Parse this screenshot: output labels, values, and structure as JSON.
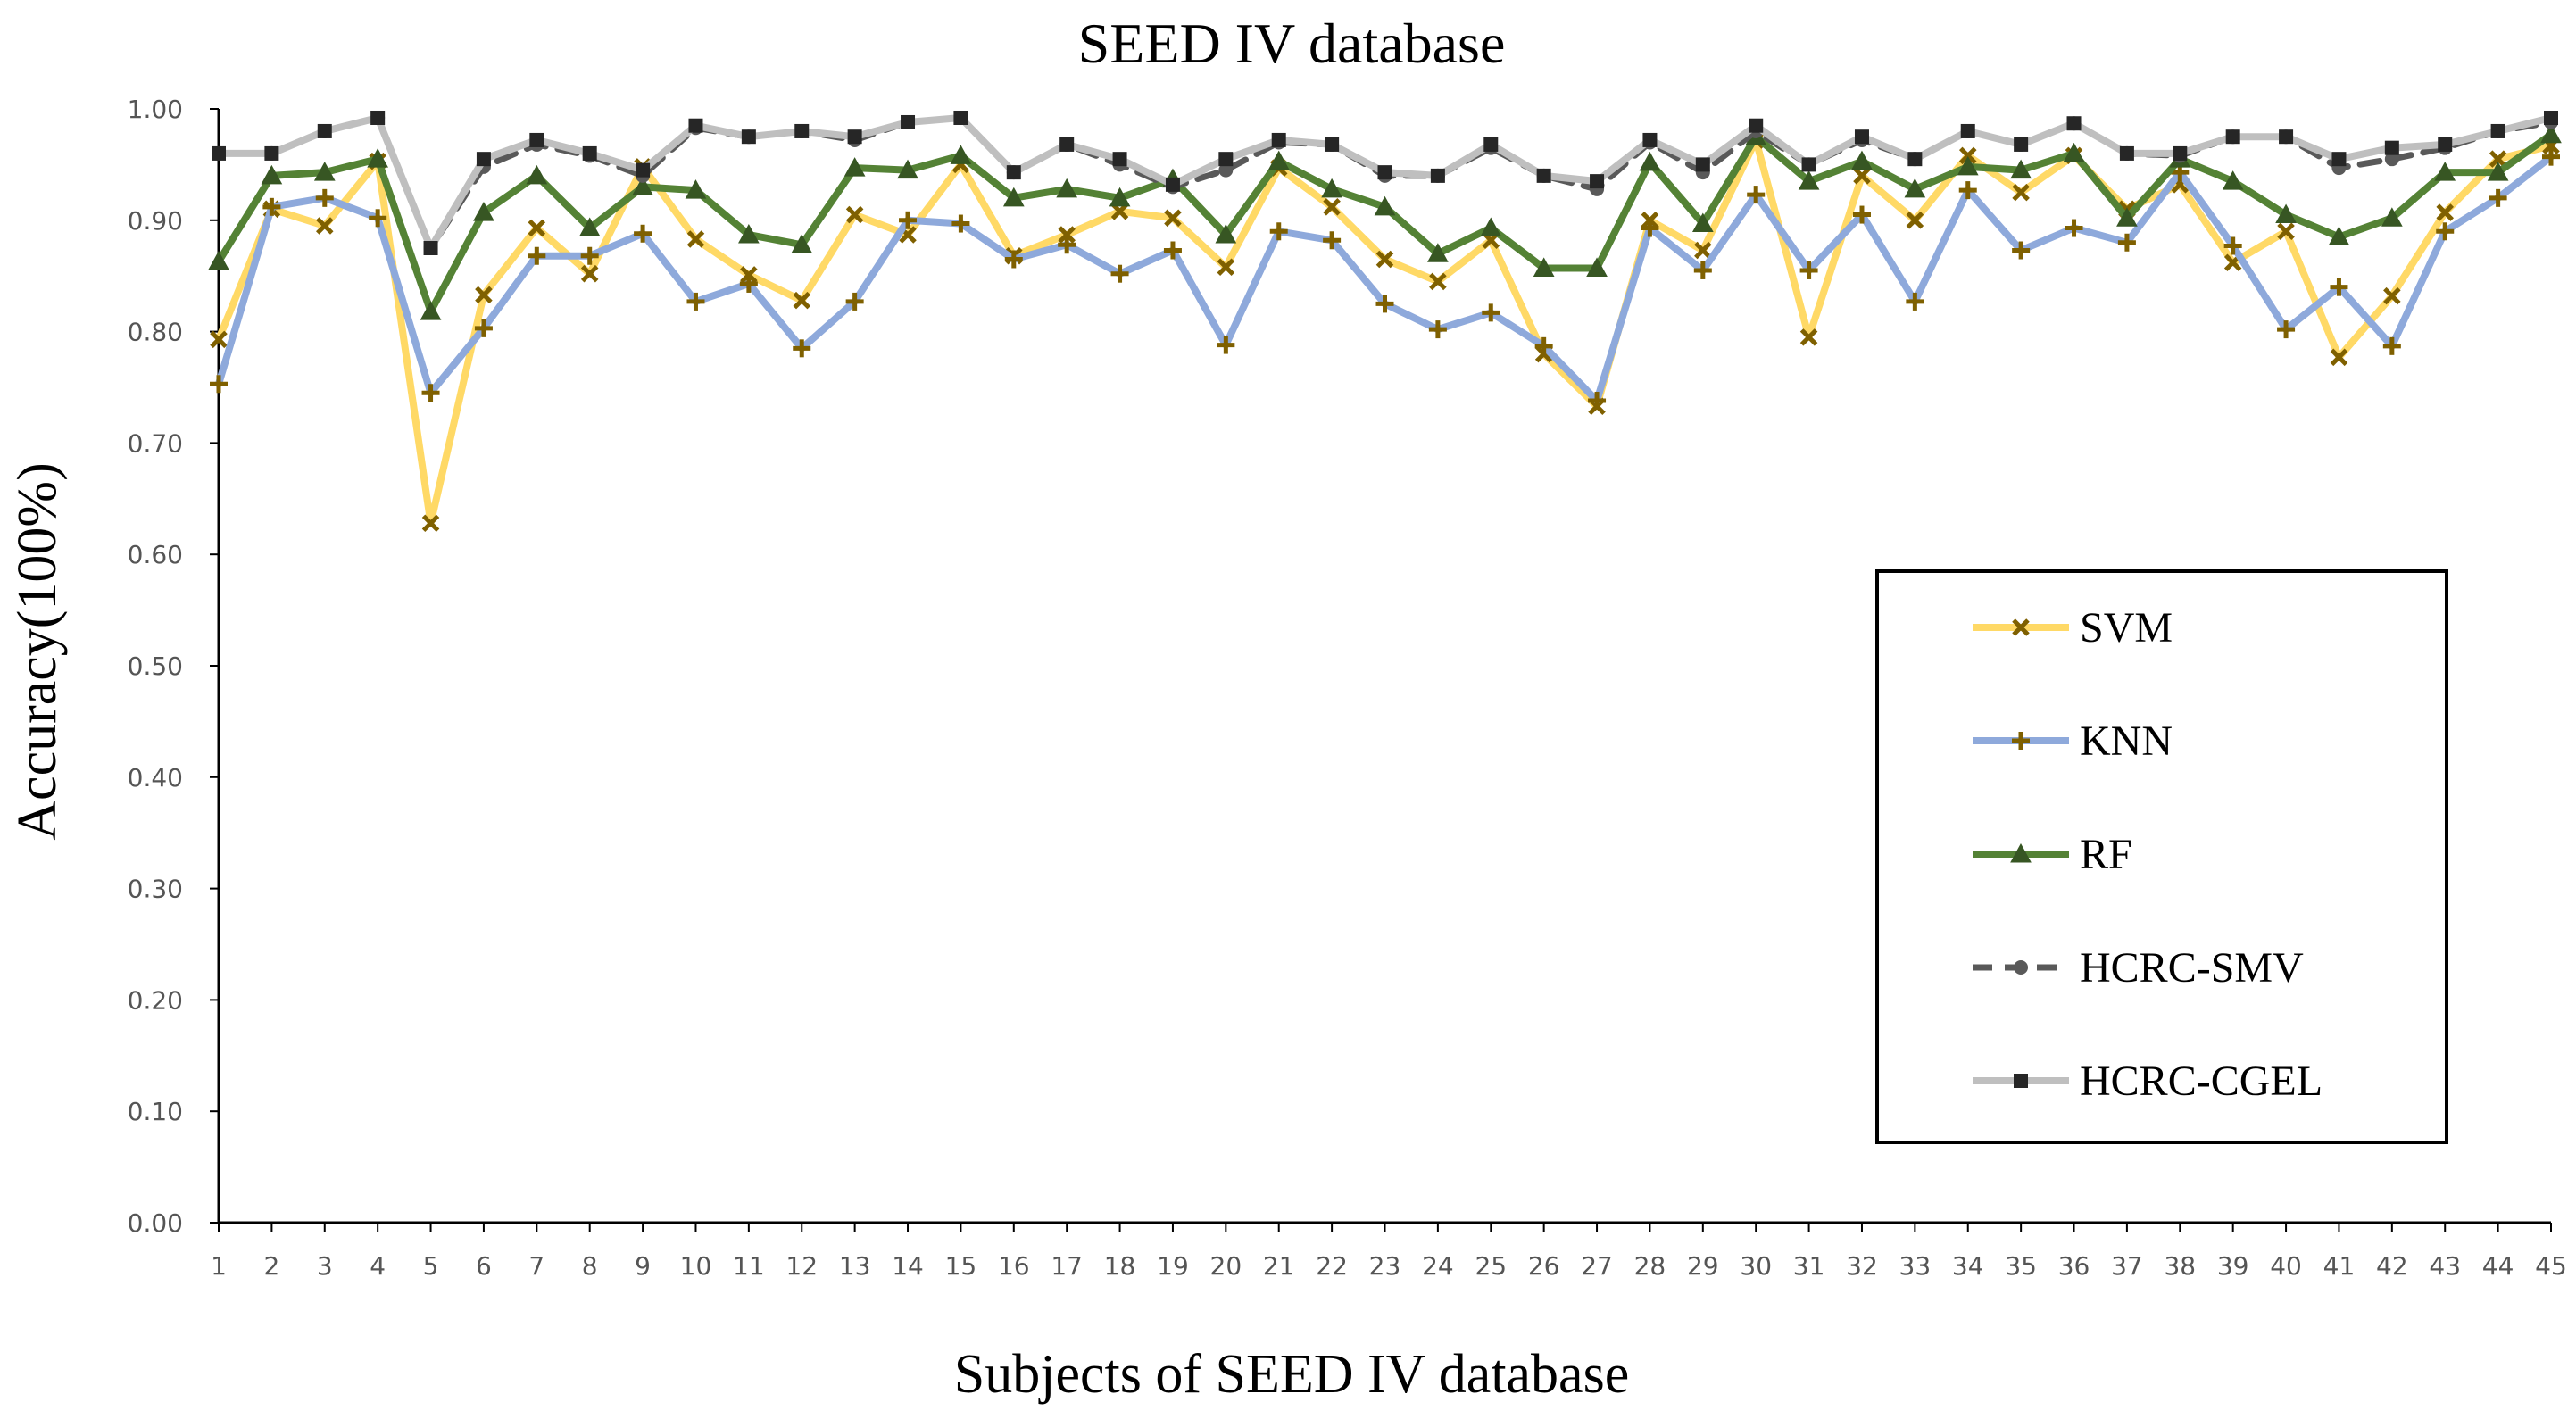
{
  "chart_data": {
    "type": "line",
    "title": "SEED IV database",
    "xlabel": "Subjects of SEED IV database",
    "ylabel": "Accuracy(100%)",
    "ylim": [
      0,
      1
    ],
    "yticks": [
      "0.00",
      "0.10",
      "0.20",
      "0.30",
      "0.40",
      "0.50",
      "0.60",
      "0.70",
      "0.80",
      "0.90",
      "1.00"
    ],
    "categories": [
      "1",
      "2",
      "3",
      "4",
      "5",
      "6",
      "7",
      "8",
      "9",
      "10",
      "11",
      "12",
      "13",
      "14",
      "15",
      "16",
      "17",
      "18",
      "19",
      "20",
      "21",
      "22",
      "23",
      "24",
      "25",
      "26",
      "27",
      "28",
      "29",
      "30",
      "31",
      "32",
      "33",
      "34",
      "35",
      "36",
      "37",
      "38",
      "39",
      "40",
      "41",
      "42",
      "43",
      "44",
      "45"
    ],
    "legend_position": "right-inside",
    "series": [
      {
        "name": "SVM",
        "color": "#FFD966",
        "marker": "x",
        "marker_color": "#7F6000",
        "dash": "solid",
        "values": [
          0.793,
          0.91,
          0.895,
          0.953,
          0.628,
          0.833,
          0.893,
          0.852,
          0.948,
          0.883,
          0.851,
          0.828,
          0.905,
          0.887,
          0.95,
          0.868,
          0.887,
          0.908,
          0.902,
          0.858,
          0.947,
          0.912,
          0.865,
          0.845,
          0.882,
          0.78,
          0.733,
          0.9,
          0.873,
          0.972,
          0.795,
          0.94,
          0.9,
          0.958,
          0.925,
          0.958,
          0.91,
          0.932,
          0.862,
          0.89,
          0.777,
          0.832,
          0.907,
          0.955,
          0.967
        ]
      },
      {
        "name": "KNN",
        "color": "#8EA9DB",
        "marker": "+",
        "marker_color": "#7F6000",
        "dash": "solid",
        "values": [
          0.753,
          0.912,
          0.92,
          0.902,
          0.745,
          0.803,
          0.868,
          0.868,
          0.888,
          0.827,
          0.843,
          0.785,
          0.827,
          0.9,
          0.897,
          0.865,
          0.878,
          0.852,
          0.873,
          0.788,
          0.89,
          0.882,
          0.825,
          0.802,
          0.817,
          0.787,
          0.738,
          0.893,
          0.855,
          0.923,
          0.855,
          0.905,
          0.827,
          0.927,
          0.873,
          0.893,
          0.88,
          0.943,
          0.877,
          0.802,
          0.84,
          0.787,
          0.89,
          0.92,
          0.957
        ]
      },
      {
        "name": "RF",
        "color": "#548235",
        "marker": "triangle",
        "marker_color": "#375623",
        "dash": "solid",
        "values": [
          0.863,
          0.94,
          0.943,
          0.955,
          0.818,
          0.907,
          0.94,
          0.893,
          0.93,
          0.927,
          0.887,
          0.878,
          0.947,
          0.945,
          0.958,
          0.92,
          0.928,
          0.92,
          0.937,
          0.887,
          0.953,
          0.928,
          0.912,
          0.87,
          0.893,
          0.857,
          0.857,
          0.952,
          0.897,
          0.975,
          0.935,
          0.953,
          0.928,
          0.948,
          0.945,
          0.96,
          0.902,
          0.955,
          0.935,
          0.905,
          0.885,
          0.902,
          0.943,
          0.943,
          0.977
        ]
      },
      {
        "name": "HCRC-SMV",
        "color": "#595959",
        "marker": "circle",
        "marker_color": "#595959",
        "dash": "dashed",
        "values": [
          0.96,
          0.96,
          0.98,
          0.992,
          0.875,
          0.948,
          0.968,
          0.958,
          0.94,
          0.983,
          0.975,
          0.98,
          0.972,
          0.988,
          0.992,
          0.943,
          0.968,
          0.95,
          0.93,
          0.945,
          0.97,
          0.968,
          0.94,
          0.94,
          0.965,
          0.94,
          0.928,
          0.97,
          0.943,
          0.98,
          0.95,
          0.972,
          0.955,
          0.98,
          0.968,
          0.987,
          0.96,
          0.958,
          0.975,
          0.975,
          0.947,
          0.955,
          0.965,
          0.98,
          0.988
        ]
      },
      {
        "name": "HCRC-CGEL",
        "color": "#BFBFBF",
        "marker": "square",
        "marker_color": "#262626",
        "dash": "solid",
        "values": [
          0.96,
          0.96,
          0.98,
          0.992,
          0.875,
          0.955,
          0.972,
          0.96,
          0.945,
          0.985,
          0.975,
          0.98,
          0.975,
          0.988,
          0.992,
          0.943,
          0.968,
          0.955,
          0.932,
          0.955,
          0.972,
          0.968,
          0.943,
          0.94,
          0.968,
          0.94,
          0.935,
          0.972,
          0.95,
          0.985,
          0.95,
          0.975,
          0.955,
          0.98,
          0.968,
          0.987,
          0.96,
          0.96,
          0.975,
          0.975,
          0.955,
          0.965,
          0.968,
          0.98,
          0.992
        ]
      }
    ]
  }
}
